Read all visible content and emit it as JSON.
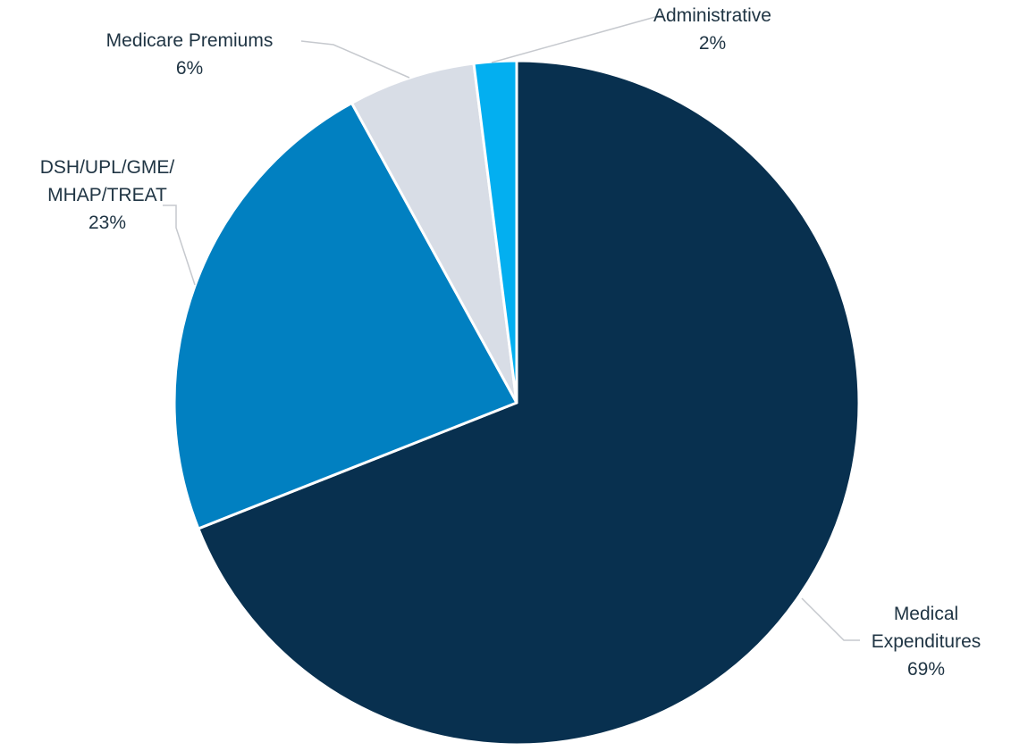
{
  "chart_data": {
    "type": "pie",
    "title": "",
    "start_angle_deg": 0,
    "direction": "clockwise",
    "slices": [
      {
        "label": "Medical Expenditures",
        "label_lines": [
          "Medical",
          "Expenditures"
        ],
        "value": 69,
        "value_label": "69%",
        "color": "#08304f"
      },
      {
        "label": "DSH/UPL/GME/MHAP/TREAT",
        "label_lines": [
          "DSH/UPL/GME/",
          "MHAP/TREAT"
        ],
        "value": 23,
        "value_label": "23%",
        "color": "#0180c1"
      },
      {
        "label": "Medicare Premiums",
        "label_lines": [
          "Medicare Premiums"
        ],
        "value": 6,
        "value_label": "6%",
        "color": "#d8dde6"
      },
      {
        "label": "Administrative",
        "label_lines": [
          "Administrative"
        ],
        "value": 2,
        "value_label": "2%",
        "color": "#03aff0"
      }
    ],
    "slice_border_color": "#ffffff",
    "leader_line_color": "#c6c9ce",
    "label_color": "#203544"
  }
}
